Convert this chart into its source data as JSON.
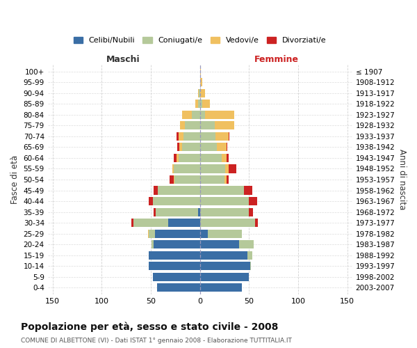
{
  "age_groups": [
    "0-4",
    "5-9",
    "10-14",
    "15-19",
    "20-24",
    "25-29",
    "30-34",
    "35-39",
    "40-44",
    "45-49",
    "50-54",
    "55-59",
    "60-64",
    "65-69",
    "70-74",
    "75-79",
    "80-84",
    "85-89",
    "90-94",
    "95-99",
    "100+"
  ],
  "birth_years": [
    "2003-2007",
    "1998-2002",
    "1993-1997",
    "1988-1992",
    "1983-1987",
    "1978-1982",
    "1973-1977",
    "1968-1972",
    "1963-1967",
    "1958-1962",
    "1953-1957",
    "1948-1952",
    "1943-1947",
    "1938-1942",
    "1933-1937",
    "1928-1932",
    "1923-1927",
    "1918-1922",
    "1913-1917",
    "1908-1912",
    "≤ 1907"
  ],
  "male": {
    "celibi": [
      44,
      48,
      52,
      52,
      47,
      46,
      32,
      2,
      0,
      0,
      0,
      0,
      0,
      0,
      0,
      0,
      0,
      0,
      0,
      0,
      0
    ],
    "coniugati": [
      0,
      0,
      0,
      0,
      2,
      6,
      36,
      43,
      48,
      43,
      26,
      27,
      22,
      18,
      17,
      15,
      8,
      2,
      1,
      0,
      0
    ],
    "vedovi": [
      0,
      0,
      0,
      0,
      0,
      1,
      0,
      0,
      0,
      0,
      1,
      1,
      2,
      3,
      5,
      5,
      10,
      3,
      1,
      0,
      0
    ],
    "divorziati": [
      0,
      0,
      0,
      0,
      0,
      0,
      2,
      2,
      4,
      4,
      4,
      0,
      3,
      2,
      2,
      0,
      0,
      0,
      0,
      0,
      0
    ]
  },
  "female": {
    "nubili": [
      43,
      50,
      51,
      48,
      40,
      8,
      0,
      0,
      0,
      0,
      0,
      0,
      0,
      0,
      0,
      0,
      0,
      0,
      0,
      0,
      0
    ],
    "coniugate": [
      0,
      0,
      1,
      5,
      15,
      35,
      56,
      50,
      50,
      45,
      25,
      26,
      22,
      17,
      16,
      15,
      5,
      2,
      0,
      0,
      0
    ],
    "vedove": [
      0,
      0,
      0,
      0,
      0,
      0,
      0,
      0,
      0,
      0,
      2,
      3,
      5,
      10,
      13,
      20,
      30,
      8,
      5,
      2,
      1
    ],
    "divorziate": [
      0,
      0,
      0,
      0,
      0,
      0,
      3,
      4,
      8,
      8,
      2,
      8,
      2,
      1,
      1,
      0,
      0,
      0,
      0,
      0,
      0
    ]
  },
  "colors": {
    "celibi": "#3a6ea5",
    "coniugati": "#b5c99a",
    "vedovi": "#f0c060",
    "divorziati": "#cc2222"
  },
  "title": "Popolazione per età, sesso e stato civile - 2008",
  "subtitle": "COMUNE DI ALBETTONE (VI) - Dati ISTAT 1° gennaio 2008 - Elaborazione TUTTITALIA.IT",
  "xlabel_left": "Maschi",
  "xlabel_right": "Femmine",
  "ylabel_left": "Fasce di età",
  "ylabel_right": "Anni di nascita",
  "legend_labels": [
    "Celibi/Nubili",
    "Coniugati/e",
    "Vedovi/e",
    "Divorziati/e"
  ],
  "xlim": 155,
  "background_color": "#ffffff",
  "grid_color": "#cccccc"
}
